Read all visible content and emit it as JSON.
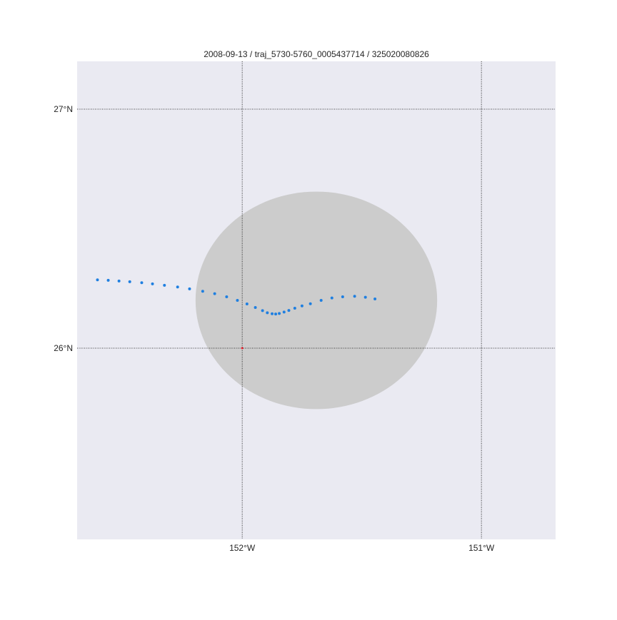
{
  "title": "2008-09-13 / traj_5730-5760_0005437714 / 325020080826",
  "map": {
    "lon_range": [
      -152.69,
      -150.69
    ],
    "lat_range": [
      25.2,
      27.2
    ],
    "background_color": "#eaeaf2",
    "gridline_style": "dotted",
    "gridline_color": "#000000",
    "lat_gridlines": [
      {
        "value": 27,
        "label": "27°N"
      },
      {
        "value": 26,
        "label": "26°N"
      }
    ],
    "lon_gridlines": [
      {
        "value": -152,
        "label": "152°W"
      },
      {
        "value": -151,
        "label": "151°W"
      }
    ]
  },
  "region": {
    "shape": "ellipse",
    "center": {
      "lon": -151.69,
      "lat": 26.2
    },
    "radius_deg": {
      "lon": 0.505,
      "lat": 0.455
    },
    "color": "#cccccc"
  },
  "reference_point": {
    "lon": -152.0,
    "lat": 26.0,
    "color": "#e8222e"
  },
  "trajectory": {
    "color": "#1f7fe0",
    "points": [
      {
        "lon": -152.605,
        "lat": 26.286
      },
      {
        "lon": -152.56,
        "lat": 26.284
      },
      {
        "lon": -152.515,
        "lat": 26.281
      },
      {
        "lon": -152.47,
        "lat": 26.278
      },
      {
        "lon": -152.42,
        "lat": 26.274
      },
      {
        "lon": -152.375,
        "lat": 26.269
      },
      {
        "lon": -152.325,
        "lat": 26.263
      },
      {
        "lon": -152.27,
        "lat": 26.256
      },
      {
        "lon": -152.22,
        "lat": 26.248
      },
      {
        "lon": -152.165,
        "lat": 26.238
      },
      {
        "lon": -152.115,
        "lat": 26.228
      },
      {
        "lon": -152.065,
        "lat": 26.215
      },
      {
        "lon": -152.02,
        "lat": 26.2
      },
      {
        "lon": -151.98,
        "lat": 26.185
      },
      {
        "lon": -151.945,
        "lat": 26.17
      },
      {
        "lon": -151.915,
        "lat": 26.157
      },
      {
        "lon": -151.895,
        "lat": 26.148
      },
      {
        "lon": -151.875,
        "lat": 26.144
      },
      {
        "lon": -151.86,
        "lat": 26.143
      },
      {
        "lon": -151.845,
        "lat": 26.145
      },
      {
        "lon": -151.825,
        "lat": 26.151
      },
      {
        "lon": -151.805,
        "lat": 26.158
      },
      {
        "lon": -151.78,
        "lat": 26.167
      },
      {
        "lon": -151.75,
        "lat": 26.177
      },
      {
        "lon": -151.715,
        "lat": 26.186
      },
      {
        "lon": -151.67,
        "lat": 26.2
      },
      {
        "lon": -151.625,
        "lat": 26.21
      },
      {
        "lon": -151.58,
        "lat": 26.215
      },
      {
        "lon": -151.53,
        "lat": 26.217
      },
      {
        "lon": -151.485,
        "lat": 26.213
      },
      {
        "lon": -151.445,
        "lat": 26.206
      }
    ]
  }
}
